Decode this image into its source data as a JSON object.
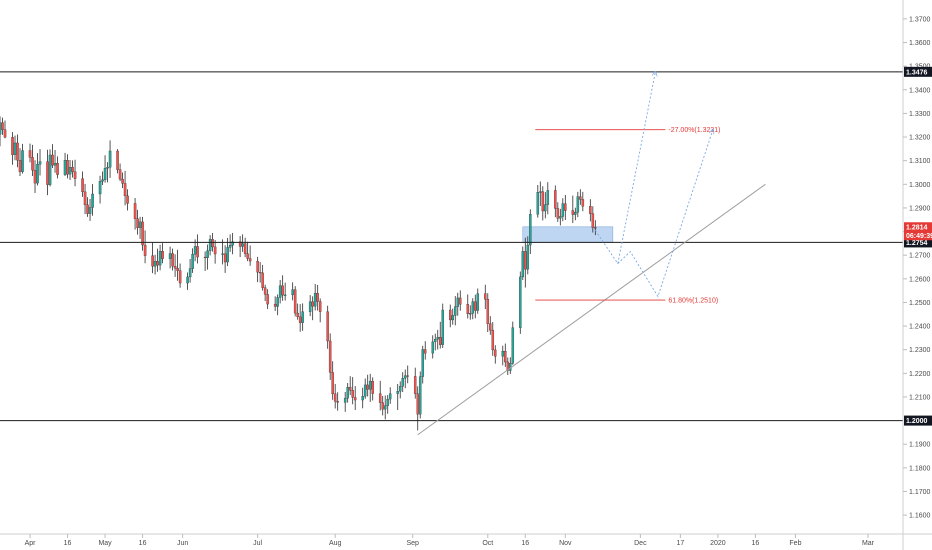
{
  "chart_data": {
    "type": "candlestick",
    "price_axis": {
      "ticks": [
        "1.3700",
        "1.3600",
        "1.3500",
        "1.3400",
        "1.3300",
        "1.3200",
        "1.3100",
        "1.3000",
        "1.2900",
        "1.2800",
        "1.2700",
        "1.2600",
        "1.2500",
        "1.2400",
        "1.2300",
        "1.2200",
        "1.2100",
        "1.1900",
        "1.1800",
        "1.1700",
        "1.1600"
      ],
      "range": [
        1.152,
        1.378
      ]
    },
    "time_axis": {
      "ticks": [
        "Apr",
        "16",
        "May",
        "16",
        "Jun",
        "Jul",
        "Aug",
        "Sep",
        "Oct",
        "16",
        "Nov",
        "Dec",
        "17",
        "2020",
        "16",
        "Feb",
        "Mar"
      ],
      "range": [
        "2019-03-20",
        "2020-03-15"
      ]
    },
    "horizontal_levels": [
      {
        "price": 1.3476,
        "label": "1.3476"
      },
      {
        "price": 1.2754,
        "label": "1.2754"
      },
      {
        "price": 1.2,
        "label": "1.2000"
      }
    ],
    "current_price": {
      "price": 1.2814,
      "label": "1.2814",
      "countdown": "06:49:39"
    },
    "fib_levels": [
      {
        "price": 1.3231,
        "label": "-27.00%(1.3231)"
      },
      {
        "price": 1.251,
        "label": "61.80%(1.2510)"
      }
    ],
    "trendline": {
      "from": {
        "date": "2019-09-03",
        "price": 1.194
      },
      "to": {
        "date": "2020-01-20",
        "price": 1.3
      }
    },
    "zone": {
      "from": "2019-10-15",
      "to": "2019-11-20",
      "high": 1.282,
      "low": 1.2754
    },
    "projections": [
      {
        "points": [
          [
            "2019-11-13",
            1.2805
          ],
          [
            "2019-11-22",
            1.2665
          ],
          [
            "2019-11-27",
            1.2715
          ],
          [
            "2019-12-08",
            1.2525
          ],
          [
            "2019-12-30",
            1.3231
          ]
        ]
      },
      {
        "points": [
          [
            "2019-11-22",
            1.2665
          ],
          [
            "2019-12-07",
            1.3476
          ]
        ]
      }
    ],
    "candles": [
      [
        "2019-03-20",
        1.3212,
        1.3288,
        1.3161,
        1.3261
      ],
      [
        "2019-03-21",
        1.3261,
        1.3282,
        1.3209,
        1.3231
      ],
      [
        "2019-03-22",
        1.3231,
        1.327,
        1.3195,
        1.3199
      ],
      [
        "2019-03-25",
        1.3199,
        1.3221,
        1.3083,
        1.3125
      ],
      [
        "2019-03-26",
        1.3125,
        1.3206,
        1.3102,
        1.3175
      ],
      [
        "2019-03-27",
        1.3175,
        1.3211,
        1.3072,
        1.3102
      ],
      [
        "2019-03-28",
        1.3102,
        1.3153,
        1.3035,
        1.3053
      ],
      [
        "2019-03-29",
        1.3053,
        1.3171,
        1.3045,
        1.3143
      ],
      [
        "2019-04-01",
        1.3143,
        1.3172,
        1.3093,
        1.3114
      ],
      [
        "2019-04-02",
        1.3114,
        1.3167,
        1.3035,
        1.306
      ],
      [
        "2019-04-03",
        1.306,
        1.3102,
        1.2963,
        1.3005
      ],
      [
        "2019-04-04",
        1.3005,
        1.3132,
        1.2995,
        1.3085
      ],
      [
        "2019-04-05",
        1.3085,
        1.3149,
        1.3037,
        1.3096
      ],
      [
        "2019-04-08",
        1.3096,
        1.3146,
        1.2954,
        1.2998
      ],
      [
        "2019-04-09",
        1.2998,
        1.3148,
        1.2991,
        1.3124
      ],
      [
        "2019-04-10",
        1.3124,
        1.317,
        1.3069,
        1.3081
      ],
      [
        "2019-04-11",
        1.3081,
        1.3145,
        1.3049,
        1.3089
      ],
      [
        "2019-04-12",
        1.3089,
        1.3118,
        1.3025,
        1.3041
      ],
      [
        "2019-04-15",
        1.3041,
        1.3133,
        1.3035,
        1.3102
      ],
      [
        "2019-04-16",
        1.3102,
        1.3127,
        1.3025,
        1.3043
      ],
      [
        "2019-04-17",
        1.3043,
        1.3103,
        1.3018,
        1.3072
      ],
      [
        "2019-04-18",
        1.3072,
        1.3101,
        1.3029,
        1.3053
      ],
      [
        "2019-04-19",
        1.3053,
        1.3104,
        1.2992,
        1.3024
      ],
      [
        "2019-04-22",
        1.3024,
        1.3054,
        1.2947,
        1.2968
      ],
      [
        "2019-04-23",
        1.2968,
        1.3002,
        1.2874,
        1.2913
      ],
      [
        "2019-04-24",
        1.2913,
        1.2945,
        1.2862,
        1.2876
      ],
      [
        "2019-04-25",
        1.2876,
        1.2938,
        1.2845,
        1.2902
      ],
      [
        "2019-04-26",
        1.2902,
        1.3001,
        1.2867,
        1.2959
      ],
      [
        "2019-04-29",
        1.2959,
        1.3036,
        1.2919,
        1.3013
      ],
      [
        "2019-04-30",
        1.3013,
        1.3054,
        1.2997,
        1.3019
      ],
      [
        "2019-05-01",
        1.3019,
        1.3123,
        1.3007,
        1.3068
      ],
      [
        "2019-05-02",
        1.3068,
        1.3094,
        1.3008,
        1.3072
      ],
      [
        "2019-05-03",
        1.3072,
        1.3186,
        1.3027,
        1.3141
      ],
      [
        "2019-05-06",
        1.3141,
        1.3149,
        1.3046,
        1.3062
      ],
      [
        "2019-05-07",
        1.3062,
        1.3088,
        1.3014,
        1.3022
      ],
      [
        "2019-05-08",
        1.3022,
        1.305,
        1.2984,
        1.3004
      ],
      [
        "2019-05-09",
        1.3004,
        1.3057,
        1.2911,
        1.2951
      ],
      [
        "2019-05-10",
        1.2951,
        1.2979,
        1.2889,
        1.2919
      ],
      [
        "2019-05-13",
        1.2919,
        1.2942,
        1.2808,
        1.2854
      ],
      [
        "2019-05-14",
        1.2854,
        1.2892,
        1.2787,
        1.2816
      ],
      [
        "2019-05-15",
        1.2816,
        1.2862,
        1.2769,
        1.2841
      ],
      [
        "2019-05-16",
        1.2841,
        1.2862,
        1.2719,
        1.2743
      ],
      [
        "2019-05-17",
        1.2743,
        1.2805,
        1.2666,
        1.2698
      ],
      [
        "2019-05-20",
        1.2698,
        1.2754,
        1.2624,
        1.2653
      ],
      [
        "2019-05-21",
        1.2653,
        1.2702,
        1.2618,
        1.2674
      ],
      [
        "2019-05-22",
        1.2674,
        1.2728,
        1.263,
        1.2658
      ],
      [
        "2019-05-23",
        1.2658,
        1.2744,
        1.2636,
        1.2717
      ],
      [
        "2019-05-24",
        1.2717,
        1.2751,
        1.2666,
        1.2685
      ],
      [
        "2019-05-27",
        1.2685,
        1.2736,
        1.2644,
        1.2707
      ],
      [
        "2019-05-28",
        1.2707,
        1.2728,
        1.2635,
        1.2653
      ],
      [
        "2019-05-29",
        1.2653,
        1.2704,
        1.2608,
        1.2645
      ],
      [
        "2019-05-30",
        1.2645,
        1.2723,
        1.2592,
        1.2634
      ],
      [
        "2019-05-31",
        1.2634,
        1.2665,
        1.2562,
        1.2582
      ],
      [
        "2019-06-03",
        1.2582,
        1.2627,
        1.2553,
        1.2608
      ],
      [
        "2019-06-04",
        1.2608,
        1.2684,
        1.2584,
        1.2643
      ],
      [
        "2019-06-05",
        1.2643,
        1.2729,
        1.2625,
        1.2704
      ],
      [
        "2019-06-06",
        1.2704,
        1.2767,
        1.2674,
        1.2737
      ],
      [
        "2019-06-07",
        1.2737,
        1.2788,
        1.2665,
        1.2692
      ],
      [
        "2019-06-10",
        1.2692,
        1.2716,
        1.2633,
        1.2689
      ],
      [
        "2019-06-11",
        1.2689,
        1.2745,
        1.2639,
        1.2719
      ],
      [
        "2019-06-12",
        1.2719,
        1.2785,
        1.2699,
        1.2767
      ],
      [
        "2019-06-13",
        1.2767,
        1.2794,
        1.2715,
        1.2735
      ],
      [
        "2019-06-14",
        1.2735,
        1.2764,
        1.2664,
        1.2705
      ],
      [
        "2019-06-17",
        1.2705,
        1.2767,
        1.2661,
        1.2706
      ],
      [
        "2019-06-18",
        1.2706,
        1.2742,
        1.2625,
        1.2671
      ],
      [
        "2019-06-19",
        1.2671,
        1.2773,
        1.2654,
        1.2733
      ],
      [
        "2019-06-20",
        1.2733,
        1.2788,
        1.2714,
        1.2742
      ],
      [
        "2019-06-21",
        1.2742,
        1.2794,
        1.2704,
        1.2757
      ],
      [
        "2019-06-24",
        1.2757,
        1.2781,
        1.2692,
        1.2737
      ],
      [
        "2019-06-25",
        1.2737,
        1.2788,
        1.2714,
        1.2749
      ],
      [
        "2019-06-26",
        1.2749,
        1.2774,
        1.2692,
        1.2706
      ],
      [
        "2019-06-27",
        1.2706,
        1.2757,
        1.2675,
        1.2686
      ],
      [
        "2019-06-28",
        1.2686,
        1.2741,
        1.2655,
        1.2675
      ],
      [
        "2019-07-01",
        1.2675,
        1.2693,
        1.2586,
        1.2628
      ],
      [
        "2019-07-02",
        1.2628,
        1.2671,
        1.2584,
        1.2625
      ],
      [
        "2019-07-03",
        1.2625,
        1.2659,
        1.255,
        1.2562
      ],
      [
        "2019-07-04",
        1.2562,
        1.2575,
        1.2506,
        1.2534
      ],
      [
        "2019-07-05",
        1.2534,
        1.2556,
        1.2472,
        1.2493
      ],
      [
        "2019-07-08",
        1.2493,
        1.2526,
        1.2464,
        1.2483
      ],
      [
        "2019-07-09",
        1.2483,
        1.2534,
        1.2446,
        1.2521
      ],
      [
        "2019-07-10",
        1.2521,
        1.2595,
        1.2496,
        1.2571
      ],
      [
        "2019-07-11",
        1.2571,
        1.2615,
        1.2507,
        1.2531
      ],
      [
        "2019-07-12",
        1.2531,
        1.2584,
        1.2508,
        1.2532
      ],
      [
        "2019-07-15",
        1.2532,
        1.2585,
        1.2509,
        1.2554
      ],
      [
        "2019-07-16",
        1.2554,
        1.2569,
        1.2441,
        1.2455
      ],
      [
        "2019-07-17",
        1.2455,
        1.2495,
        1.2427,
        1.2439
      ],
      [
        "2019-07-18",
        1.2439,
        1.2493,
        1.2376,
        1.2414
      ],
      [
        "2019-07-19",
        1.2414,
        1.2496,
        1.238,
        1.2461
      ],
      [
        "2019-07-22",
        1.2461,
        1.2531,
        1.2442,
        1.2503
      ],
      [
        "2019-07-23",
        1.2503,
        1.2526,
        1.2425,
        1.2484
      ],
      [
        "2019-07-24",
        1.2484,
        1.2578,
        1.2466,
        1.2539
      ],
      [
        "2019-07-25",
        1.2539,
        1.2574,
        1.2466,
        1.2504
      ],
      [
        "2019-07-26",
        1.2504,
        1.2517,
        1.2416,
        1.2461
      ],
      [
        "2019-07-29",
        1.2461,
        1.2486,
        1.2304,
        1.2337
      ],
      [
        "2019-07-30",
        1.2337,
        1.2369,
        1.2172,
        1.2204
      ],
      [
        "2019-07-31",
        1.2204,
        1.2251,
        1.2088,
        1.2113
      ],
      [
        "2019-08-01",
        1.2113,
        1.2155,
        1.2051,
        1.2082
      ],
      [
        "2019-08-02",
        1.2082,
        1.212,
        1.2042,
        1.2077
      ],
      [
        "2019-08-05",
        1.2077,
        1.2121,
        1.2037,
        1.2095
      ],
      [
        "2019-08-06",
        1.2095,
        1.2159,
        1.2076,
        1.2141
      ],
      [
        "2019-08-07",
        1.2141,
        1.2188,
        1.2108,
        1.2128
      ],
      [
        "2019-08-08",
        1.2128,
        1.2184,
        1.2069,
        1.2098
      ],
      [
        "2019-08-09",
        1.2098,
        1.2146,
        1.2045,
        1.2087
      ],
      [
        "2019-08-12",
        1.2087,
        1.2139,
        1.2052,
        1.2103
      ],
      [
        "2019-08-13",
        1.2103,
        1.2178,
        1.2092,
        1.2151
      ],
      [
        "2019-08-14",
        1.2151,
        1.2194,
        1.2102,
        1.2132
      ],
      [
        "2019-08-15",
        1.2132,
        1.2198,
        1.2079,
        1.2167
      ],
      [
        "2019-08-16",
        1.2167,
        1.2183,
        1.2085,
        1.2114
      ],
      [
        "2019-08-19",
        1.2114,
        1.2168,
        1.2043,
        1.2076
      ],
      [
        "2019-08-20",
        1.2076,
        1.2104,
        1.2022,
        1.2048
      ],
      [
        "2019-08-21",
        1.2048,
        1.2106,
        1.2005,
        1.2063
      ],
      [
        "2019-08-22",
        1.2063,
        1.2108,
        1.2029,
        1.2091
      ],
      [
        "2019-08-23",
        1.2091,
        1.2141,
        1.2071,
        1.2114
      ],
      [
        "2019-08-26",
        1.2114,
        1.2155,
        1.2045,
        1.2124
      ],
      [
        "2019-08-27",
        1.2124,
        1.2166,
        1.2094,
        1.2145
      ],
      [
        "2019-08-28",
        1.2145,
        1.2205,
        1.2121,
        1.2179
      ],
      [
        "2019-08-29",
        1.2179,
        1.2216,
        1.2137,
        1.219
      ],
      [
        "2019-08-30",
        1.219,
        1.2233,
        1.2158,
        1.2187
      ],
      [
        "2019-09-02",
        1.2187,
        1.2224,
        1.2093,
        1.2114
      ],
      [
        "2019-09-03",
        1.2114,
        1.2145,
        1.1958,
        1.2027
      ],
      [
        "2019-09-04",
        1.2027,
        1.2208,
        1.2009,
        1.2186
      ],
      [
        "2019-09-05",
        1.2186,
        1.2316,
        1.2157,
        1.2301
      ],
      [
        "2019-09-06",
        1.2301,
        1.2336,
        1.2258,
        1.2285
      ],
      [
        "2019-09-09",
        1.2285,
        1.2361,
        1.2263,
        1.2333
      ],
      [
        "2019-09-10",
        1.2333,
        1.2368,
        1.2297,
        1.2344
      ],
      [
        "2019-09-11",
        1.2344,
        1.2384,
        1.2301,
        1.2353
      ],
      [
        "2019-09-12",
        1.2353,
        1.2418,
        1.2305,
        1.2321
      ],
      [
        "2019-09-13",
        1.2321,
        1.2495,
        1.2307,
        1.2468
      ],
      [
        "2019-09-16",
        1.2468,
        1.2491,
        1.2395,
        1.2426
      ],
      [
        "2019-09-17",
        1.2426,
        1.2474,
        1.2406,
        1.2445
      ],
      [
        "2019-09-18",
        1.2445,
        1.2527,
        1.2403,
        1.2482
      ],
      [
        "2019-09-19",
        1.2482,
        1.2541,
        1.2444,
        1.2519
      ],
      [
        "2019-09-20",
        1.2519,
        1.2551,
        1.2465,
        1.2492
      ],
      [
        "2019-09-23",
        1.2492,
        1.2534,
        1.2432,
        1.2452
      ],
      [
        "2019-09-24",
        1.2452,
        1.2488,
        1.2427,
        1.2454
      ],
      [
        "2019-09-25",
        1.2454,
        1.2518,
        1.2429,
        1.2503
      ],
      [
        "2019-09-26",
        1.2503,
        1.2533,
        1.2433,
        1.2466
      ],
      [
        "2019-09-27",
        1.2466,
        1.2559,
        1.2452,
        1.2537
      ],
      [
        "2019-09-30",
        1.2537,
        1.2575,
        1.2472,
        1.2514
      ],
      [
        "2019-10-01",
        1.2514,
        1.2539,
        1.2375,
        1.241
      ],
      [
        "2019-10-02",
        1.241,
        1.2442,
        1.2363,
        1.2383
      ],
      [
        "2019-10-03",
        1.2383,
        1.2417,
        1.2274,
        1.2299
      ],
      [
        "2019-10-04",
        1.2299,
        1.2319,
        1.2241,
        1.2272
      ],
      [
        "2019-10-07",
        1.2272,
        1.2317,
        1.2234,
        1.2294
      ],
      [
        "2019-10-08",
        1.2294,
        1.2326,
        1.2227,
        1.2248
      ],
      [
        "2019-10-09",
        1.2248,
        1.2267,
        1.2193,
        1.2212
      ],
      [
        "2019-10-10",
        1.2212,
        1.2268,
        1.2197,
        1.2243
      ],
      [
        "2019-10-11",
        1.2243,
        1.2419,
        1.2236,
        1.2393
      ],
      [
        "2019-10-14",
        1.2393,
        1.2631,
        1.2367,
        1.2608
      ],
      [
        "2019-10-15",
        1.2608,
        1.2737,
        1.2595,
        1.2716
      ],
      [
        "2019-10-16",
        1.2716,
        1.2774,
        1.2563,
        1.2641
      ],
      [
        "2019-10-17",
        1.2641,
        1.278,
        1.2619,
        1.2743
      ],
      [
        "2019-10-18",
        1.2743,
        1.2894,
        1.2705,
        1.2873
      ],
      [
        "2019-10-21",
        1.2873,
        1.2997,
        1.2859,
        1.2966
      ],
      [
        "2019-10-22",
        1.2966,
        1.3012,
        1.2908,
        1.2969
      ],
      [
        "2019-10-23",
        1.2969,
        1.2992,
        1.2847,
        1.2887
      ],
      [
        "2019-10-24",
        1.2887,
        1.2967,
        1.2856,
        1.2914
      ],
      [
        "2019-10-25",
        1.2914,
        1.3009,
        1.2873,
        1.2974
      ],
      [
        "2019-10-28",
        1.2974,
        1.2995,
        1.2861,
        1.2898
      ],
      [
        "2019-10-29",
        1.2898,
        1.2924,
        1.2841,
        1.2856
      ],
      [
        "2019-10-30",
        1.2856,
        1.2896,
        1.2826,
        1.2864
      ],
      [
        "2019-10-31",
        1.2864,
        1.2941,
        1.2844,
        1.2918
      ],
      [
        "2019-11-01",
        1.2918,
        1.2955,
        1.2849,
        1.2889
      ],
      [
        "2019-11-04",
        1.2889,
        1.2952,
        1.2836,
        1.2872
      ],
      [
        "2019-11-05",
        1.2872,
        1.2901,
        1.2848,
        1.2882
      ],
      [
        "2019-11-06",
        1.2882,
        1.2968,
        1.2861,
        1.2947
      ],
      [
        "2019-11-07",
        1.2947,
        1.2979,
        1.2913,
        1.2936
      ],
      [
        "2019-11-08",
        1.2936,
        1.2968,
        1.2886,
        1.2907
      ],
      [
        "2019-11-11",
        1.2907,
        1.2937,
        1.2843,
        1.2876
      ],
      [
        "2019-11-12",
        1.2876,
        1.2907,
        1.2796,
        1.2817
      ],
      [
        "2019-11-13",
        1.2817,
        1.2848,
        1.2785,
        1.2814
      ]
    ]
  },
  "colors": {
    "up": "#26a69a",
    "down": "#ef5350",
    "wick": "#2b2b2b",
    "fib": "#e53935",
    "projection": "#7ba7e8",
    "zone": "#a9c8ef",
    "trendline": "#9e9e9e"
  }
}
